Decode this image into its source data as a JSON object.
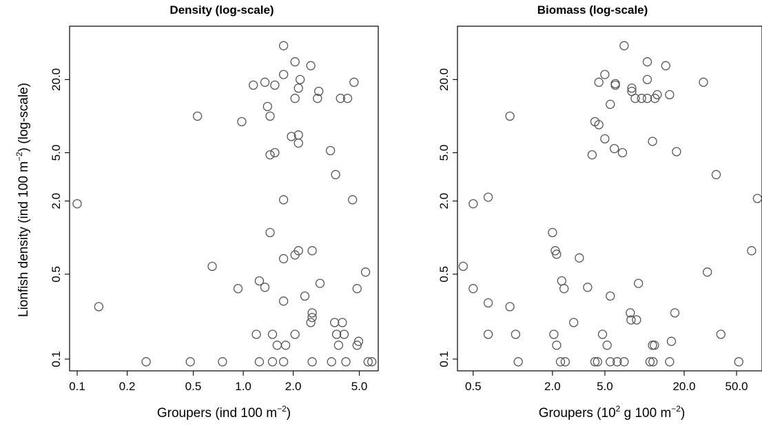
{
  "chart_data": [
    {
      "type": "scatter",
      "title": "Density (log-scale)",
      "xlabel": "Groupers (ind 100 m^-2)",
      "xlabel_parts": {
        "pre": "Groupers (ind 100 m",
        "sup": "−2",
        "post": ")"
      },
      "ylabel": "Lionfish density (ind 100 m^-2)  (log-scale)",
      "ylabel_parts": {
        "pre": "Lionfish density (ind 100 m",
        "sup": "−2",
        "post": ")  (log-scale)"
      },
      "x_scale": "log",
      "y_scale": "log",
      "xlim": [
        0.09,
        6.5
      ],
      "ylim": [
        0.08,
        55
      ],
      "x_ticks": [
        0.1,
        0.2,
        0.5,
        1.0,
        2.0,
        5.0
      ],
      "x_tick_labels": [
        "0.1",
        "0.2",
        "0.5",
        "1.0",
        "2.0",
        "5.0"
      ],
      "y_ticks": [
        0.1,
        0.5,
        2.0,
        5.0,
        20.0
      ],
      "y_tick_labels": [
        "0.1",
        "0.5",
        "2.0",
        "5.0",
        "20.0"
      ],
      "grid": false,
      "x": [
        1.75,
        2.05,
        2.55,
        1.75,
        2.2,
        1.35,
        4.65,
        1.15,
        1.55,
        2.15,
        2.85,
        4.25,
        2.05,
        2.8,
        3.85,
        1.4,
        0.53,
        1.45,
        0.98,
        2.15,
        1.95,
        2.15,
        3.35,
        1.55,
        1.45,
        3.6,
        0.1,
        1.75,
        4.55,
        1.45,
        2.15,
        2.6,
        2.05,
        1.75,
        0.65,
        5.45,
        1.25,
        2.9,
        0.93,
        1.35,
        4.85,
        2.35,
        1.75,
        0.135,
        2.6,
        2.6,
        2.55,
        3.55,
        3.95,
        1.2,
        1.5,
        2.05,
        3.65,
        4.05,
        1.6,
        1.8,
        3.75,
        4.85,
        4.95,
        0.26,
        0.48,
        0.75,
        1.25,
        1.5,
        1.75,
        2.6,
        3.4,
        4.15,
        5.65,
        5.95
      ],
      "y": [
        38,
        28,
        26,
        22,
        20,
        19,
        19,
        18,
        18,
        17,
        16,
        14,
        14,
        14,
        14,
        12,
        10,
        10,
        9,
        7,
        6.8,
        6,
        5.2,
        5,
        4.8,
        3.3,
        1.9,
        2.05,
        2.05,
        1.1,
        0.78,
        0.78,
        0.72,
        0.67,
        0.58,
        0.52,
        0.44,
        0.42,
        0.38,
        0.39,
        0.38,
        0.33,
        0.3,
        0.27,
        0.24,
        0.22,
        0.2,
        0.2,
        0.2,
        0.16,
        0.16,
        0.16,
        0.16,
        0.16,
        0.13,
        0.13,
        0.13,
        0.13,
        0.14,
        0.095,
        0.095,
        0.095,
        0.095,
        0.095,
        0.095,
        0.095,
        0.095,
        0.095,
        0.095,
        0.095
      ]
    },
    {
      "type": "scatter",
      "title": "Biomass (log-scale)",
      "xlabel": "Groupers (10^2 g 100 m^-2)",
      "xlabel_parts": {
        "pre": "Groupers (10",
        "sup": "2",
        "mid": " g 100 m",
        "sup2": "−2",
        "post": ")"
      },
      "ylabel": "",
      "x_scale": "log",
      "y_scale": "log",
      "xlim": [
        0.38,
        78
      ],
      "ylim": [
        0.08,
        55
      ],
      "x_ticks": [
        0.5,
        2.0,
        5.0,
        20.0,
        50.0
      ],
      "x_tick_labels": [
        "0.5",
        "2.0",
        "5.0",
        "20.0",
        "50.0"
      ],
      "y_ticks": [
        0.1,
        0.5,
        2.0,
        5.0,
        20.0
      ],
      "y_tick_labels": [
        "0.1",
        "0.5",
        "2.0",
        "5.0",
        "20.0"
      ],
      "grid": false,
      "x": [
        7.0,
        10.5,
        14.5,
        5.0,
        10.5,
        4.5,
        6.0,
        6.0,
        8.0,
        12.5,
        15.5,
        28.0,
        8.0,
        8.5,
        9.5,
        10.5,
        12.0,
        5.5,
        0.95,
        4.2,
        4.5,
        5.0,
        11.5,
        5.9,
        4.0,
        6.8,
        17.5,
        0.5,
        0.65,
        35.0,
        72.0,
        2.0,
        2.1,
        2.15,
        3.2,
        65.0,
        0.42,
        2.35,
        30.0,
        0.5,
        3.7,
        9.0,
        0.65,
        2.45,
        5.5,
        0.95,
        7.8,
        7.9,
        8.7,
        17.0,
        2.9,
        0.65,
        1.05,
        2.05,
        4.8,
        16.0,
        38.0,
        2.15,
        5.2,
        11.5,
        11.9,
        1.1,
        2.3,
        2.5,
        4.2,
        4.4,
        5.5,
        6.2,
        7.0,
        11.0,
        11.6,
        15.5,
        52.0
      ],
      "y": [
        38,
        28,
        26,
        22,
        20,
        19,
        18.5,
        18,
        16,
        15,
        15,
        19,
        17,
        14,
        14,
        14,
        14,
        12.5,
        10,
        9,
        8.5,
        6.5,
        6.2,
        5.4,
        4.8,
        5.0,
        5.1,
        1.9,
        2.15,
        3.3,
        2.1,
        1.1,
        0.78,
        0.73,
        0.68,
        0.78,
        0.58,
        0.44,
        0.52,
        0.38,
        0.39,
        0.42,
        0.29,
        0.38,
        0.33,
        0.27,
        0.24,
        0.21,
        0.21,
        0.24,
        0.2,
        0.16,
        0.16,
        0.16,
        0.16,
        0.14,
        0.16,
        0.13,
        0.13,
        0.13,
        0.13,
        0.095,
        0.095,
        0.095,
        0.095,
        0.095,
        0.095,
        0.095,
        0.095,
        0.095,
        0.095,
        0.095,
        0.095
      ]
    }
  ]
}
